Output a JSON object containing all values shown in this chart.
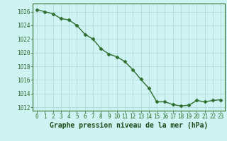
{
  "x": [
    0,
    1,
    2,
    3,
    4,
    5,
    6,
    7,
    8,
    9,
    10,
    11,
    12,
    13,
    14,
    15,
    16,
    17,
    18,
    19,
    20,
    21,
    22,
    23
  ],
  "y": [
    1026.3,
    1026.0,
    1025.7,
    1025.0,
    1024.8,
    1024.0,
    1022.7,
    1022.0,
    1020.6,
    1019.8,
    1019.4,
    1018.7,
    1017.5,
    1016.1,
    1014.8,
    1012.8,
    1012.8,
    1012.4,
    1012.2,
    1012.3,
    1013.0,
    1012.8,
    1013.0,
    1013.1
  ],
  "ylim": [
    1011.5,
    1027.2
  ],
  "xlim": [
    -0.5,
    23.5
  ],
  "yticks": [
    1012,
    1014,
    1016,
    1018,
    1020,
    1022,
    1024,
    1026
  ],
  "xticks": [
    0,
    1,
    2,
    3,
    4,
    5,
    6,
    7,
    8,
    9,
    10,
    11,
    12,
    13,
    14,
    15,
    16,
    17,
    18,
    19,
    20,
    21,
    22,
    23
  ],
  "xlabel": "Graphe pression niveau de la mer (hPa)",
  "line_color": "#2d6e2d",
  "marker": "D",
  "marker_size": 2.5,
  "bg_color": "#cff2f2",
  "grid_color": "#aad8d8",
  "xlabel_color": "#1a4d1a",
  "tick_color": "#2d6e2d",
  "spine_color": "#2d6e2d",
  "linewidth": 1.0,
  "tick_fontsize": 5.5,
  "xlabel_fontsize": 7.0
}
